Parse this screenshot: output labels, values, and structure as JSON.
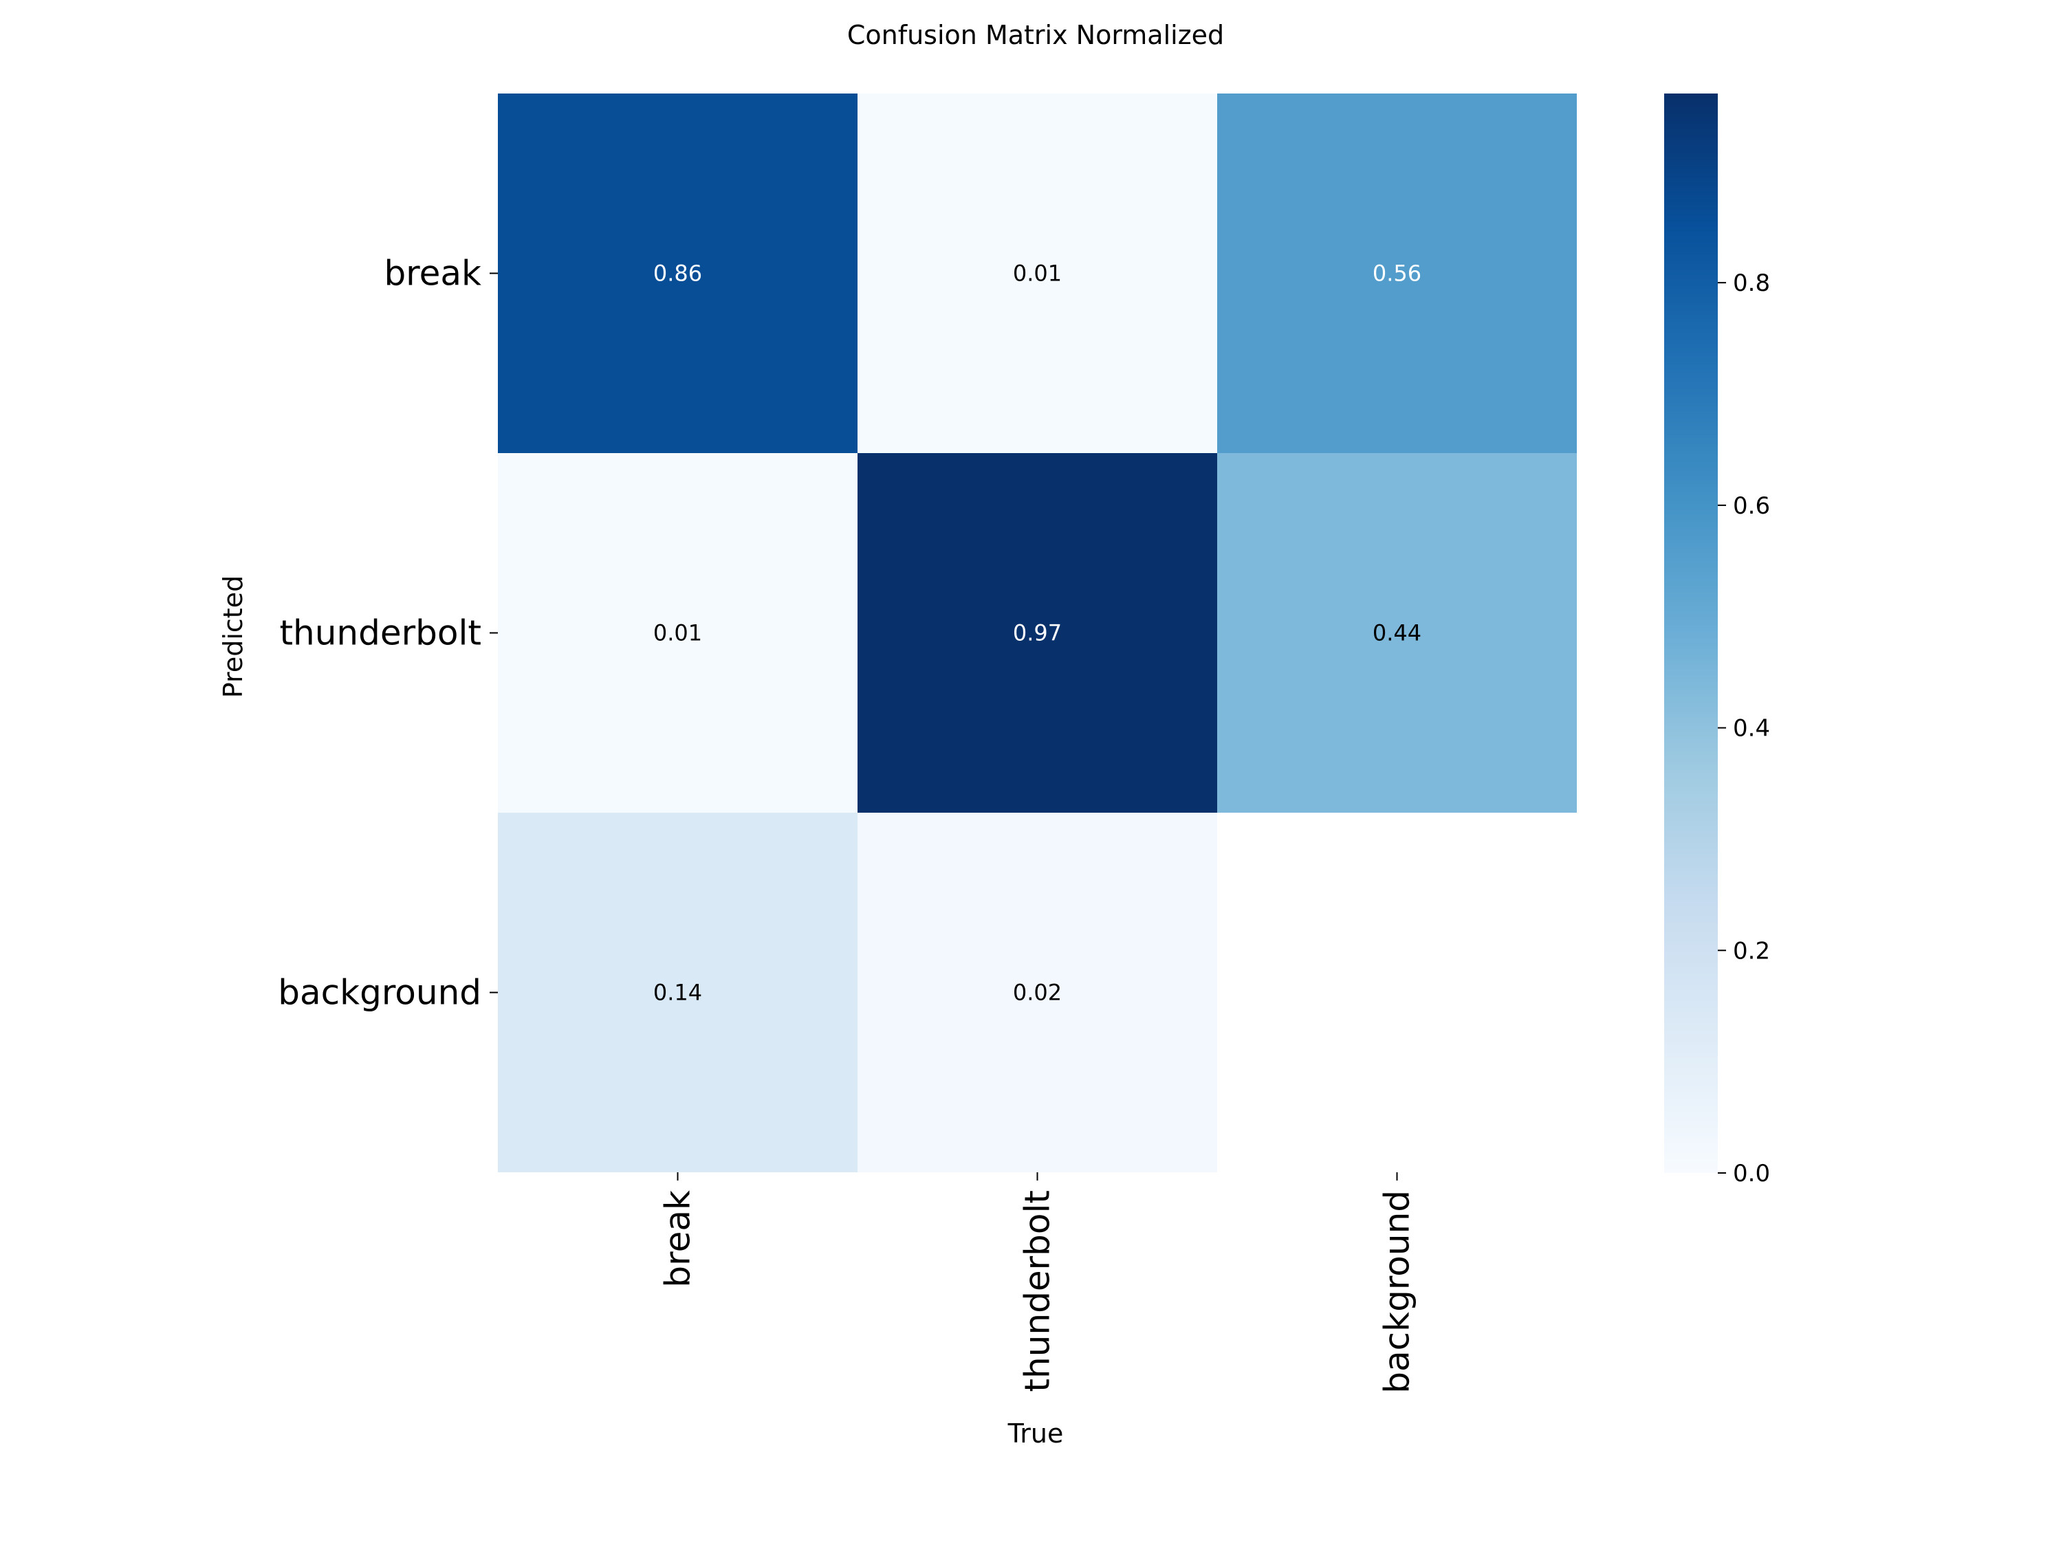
{
  "chart_data": {
    "type": "heatmap",
    "title": "Confusion Matrix Normalized",
    "xlabel": "True",
    "ylabel": "Predicted",
    "x_categories": [
      "break",
      "thunderbolt",
      "background"
    ],
    "y_categories": [
      "break",
      "thunderbolt",
      "background"
    ],
    "values": [
      [
        0.86,
        0.01,
        0.56
      ],
      [
        0.01,
        0.97,
        0.44
      ],
      [
        0.14,
        0.02,
        null
      ]
    ],
    "value_labels": [
      [
        "0.86",
        "0.01",
        "0.56"
      ],
      [
        "0.01",
        "0.97",
        "0.44"
      ],
      [
        "0.14",
        "0.02",
        ""
      ]
    ],
    "colormap": "Blues",
    "vmin": 0.0,
    "vmax": 0.97,
    "colorbar_ticks": [
      0.0,
      0.2,
      0.4,
      0.6,
      0.8
    ],
    "colorbar_tick_labels": [
      "0.0",
      "0.2",
      "0.4",
      "0.6",
      "0.8"
    ],
    "grid": false
  }
}
